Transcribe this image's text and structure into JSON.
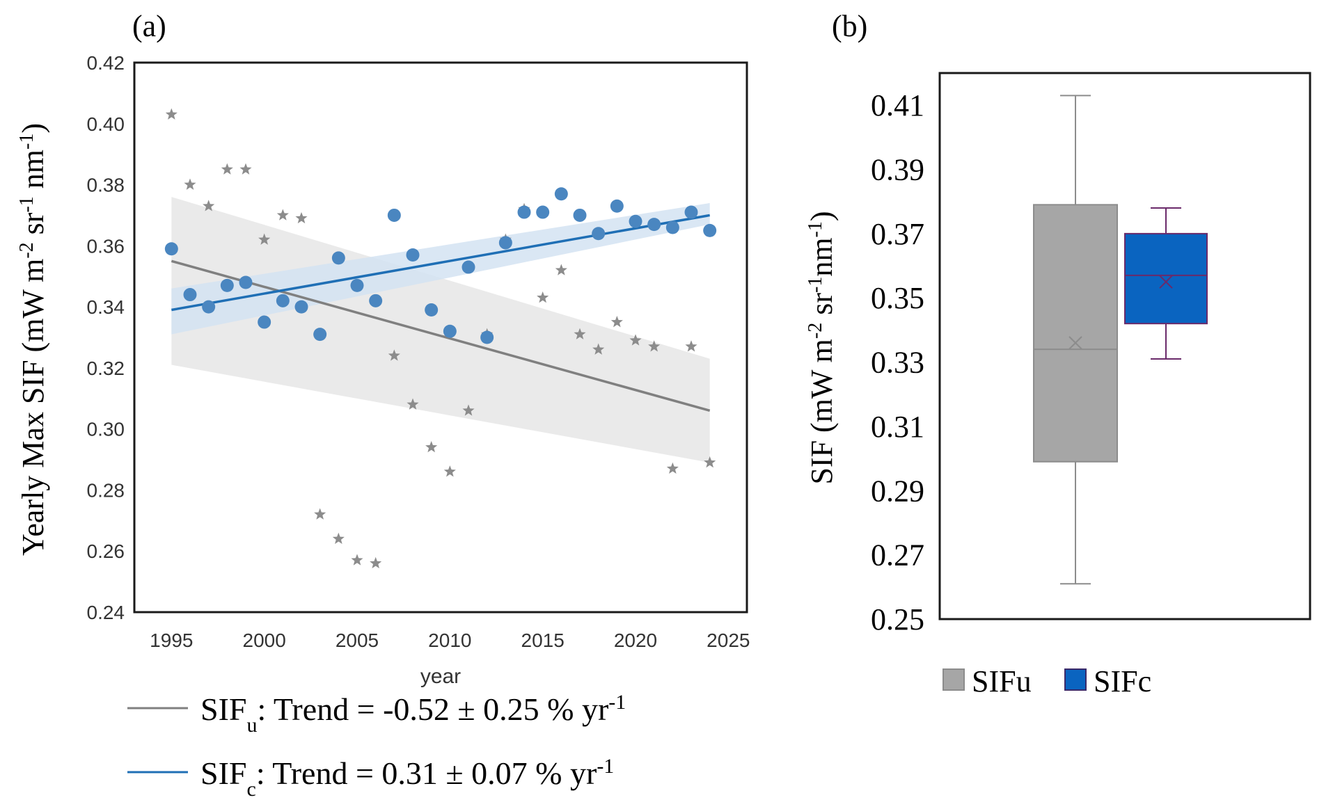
{
  "chart_data": [
    {
      "panel": "(a)",
      "type": "scatter",
      "title": "",
      "xlabel": "year",
      "ylabel_main": "Yearly Max SIF (mW m",
      "ylabel_sup1": "-2",
      "ylabel_mid1": " sr",
      "ylabel_sup2": "-1",
      "ylabel_mid2": " nm",
      "ylabel_sup3": "-1",
      "ylabel_end": ")",
      "xlim": [
        1993,
        2026
      ],
      "ylim": [
        0.24,
        0.42
      ],
      "xticks": [
        "1995",
        "2000",
        "2005",
        "2010",
        "2015",
        "2020",
        "2025"
      ],
      "yticks": [
        "0.24",
        "0.26",
        "0.28",
        "0.30",
        "0.32",
        "0.34",
        "0.36",
        "0.38",
        "0.40",
        "0.42"
      ],
      "series": [
        {
          "name": "SIFu",
          "marker": "star",
          "color": "#8c8c8c",
          "x": [
            1995,
            1996,
            1997,
            1998,
            1999,
            2000,
            2001,
            2002,
            2003,
            2004,
            2005,
            2006,
            2007,
            2008,
            2009,
            2010,
            2011,
            2012,
            2013,
            2014,
            2015,
            2016,
            2017,
            2018,
            2019,
            2020,
            2021,
            2022,
            2023,
            2024
          ],
          "y": [
            0.403,
            0.38,
            0.373,
            0.385,
            0.385,
            0.362,
            0.37,
            0.369,
            0.272,
            0.264,
            0.257,
            0.256,
            0.324,
            0.308,
            0.294,
            0.286,
            0.306,
            0.331,
            0.362,
            0.372,
            0.343,
            0.352,
            0.331,
            0.326,
            0.335,
            0.329,
            0.327,
            0.287,
            0.327,
            0.289
          ]
        },
        {
          "name": "SIFc",
          "marker": "circle",
          "color": "#4a86c0",
          "x": [
            1995,
            1996,
            1997,
            1998,
            1999,
            2000,
            2001,
            2002,
            2003,
            2004,
            2005,
            2006,
            2007,
            2008,
            2009,
            2010,
            2011,
            2012,
            2013,
            2014,
            2015,
            2016,
            2017,
            2018,
            2019,
            2020,
            2021,
            2022,
            2023,
            2024
          ],
          "y": [
            0.359,
            0.344,
            0.34,
            0.347,
            0.348,
            0.335,
            0.342,
            0.34,
            0.331,
            0.356,
            0.347,
            0.342,
            0.37,
            0.357,
            0.339,
            0.332,
            0.353,
            0.33,
            0.361,
            0.371,
            0.371,
            0.377,
            0.37,
            0.364,
            0.373,
            0.368,
            0.367,
            0.366,
            0.371,
            0.365
          ]
        }
      ],
      "trend_lines": [
        {
          "name": "SIFu",
          "x": [
            1995,
            2024
          ],
          "y": [
            0.355,
            0.306
          ],
          "ci_lower": [
            0.321,
            0.289
          ],
          "ci_upper": [
            0.376,
            0.323
          ],
          "color": "#808080",
          "band_color": "#e6e6e6"
        },
        {
          "name": "SIFc",
          "x": [
            1995,
            2024
          ],
          "y": [
            0.339,
            0.37
          ],
          "ci_lower": [
            0.331,
            0.367
          ],
          "ci_upper": [
            0.346,
            0.374
          ],
          "color": "#1f6fb5",
          "band_color": "#d3e3f2"
        }
      ],
      "legend": [
        {
          "series": "SIFu",
          "prefix": "SIF",
          "subscript": "u",
          "text": ": Trend = -0.52 ± 0.25 % yr",
          "superscript": "-1",
          "color": "#808080"
        },
        {
          "series": "SIFc",
          "prefix": "SIF",
          "subscript": "c",
          "text": ": Trend = 0.31 ± 0.07 % yr",
          "superscript": "-1",
          "color": "#1f6fb5"
        }
      ]
    },
    {
      "panel": "(b)",
      "type": "box",
      "ylabel_main": "SIF (mW m",
      "ylabel_sup1": "-2",
      "ylabel_mid1": " sr",
      "ylabel_sup2": "-1",
      "ylabel_mid2": "nm",
      "ylabel_sup3": "-1",
      "ylabel_end": ")",
      "ylim": [
        0.25,
        0.42
      ],
      "yticks": [
        "0.25",
        "0.27",
        "0.29",
        "0.31",
        "0.33",
        "0.35",
        "0.37",
        "0.39",
        "0.41"
      ],
      "boxes": [
        {
          "name": "SIFu",
          "min": 0.261,
          "q1": 0.299,
          "median": 0.334,
          "q3": 0.379,
          "max": 0.413,
          "mean": 0.336,
          "fill": "#a6a6a6",
          "edge": "#8c8c8c",
          "whisker": "#8c8c8c"
        },
        {
          "name": "SIFc",
          "min": 0.331,
          "q1": 0.342,
          "median": 0.357,
          "q3": 0.37,
          "max": 0.378,
          "mean": 0.355,
          "fill": "#0a64c0",
          "edge": "#6a2a6a",
          "whisker": "#6a2a6a"
        }
      ],
      "legend": [
        "SIFu",
        "SIFc"
      ]
    }
  ]
}
